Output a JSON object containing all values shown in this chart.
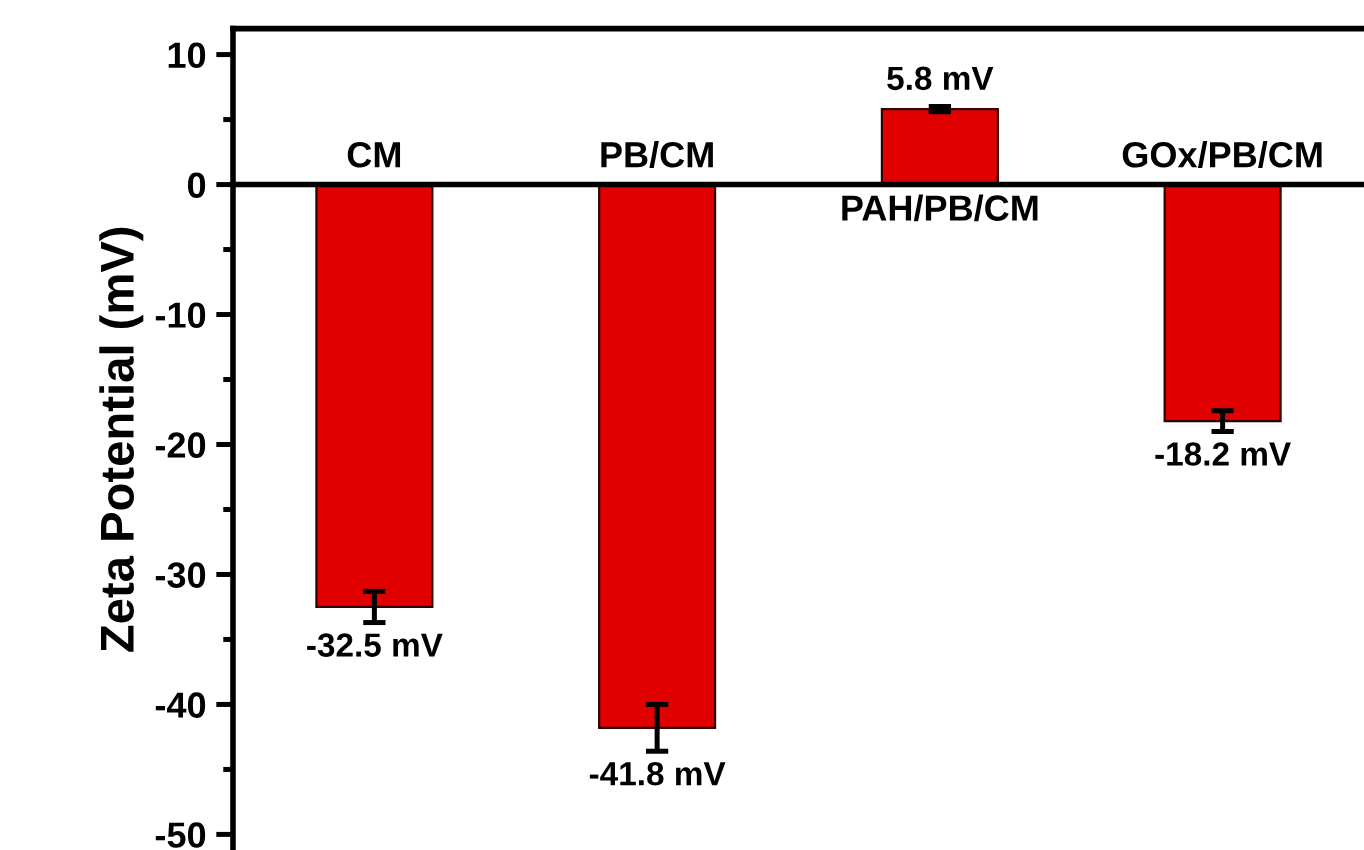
{
  "chart_data": {
    "type": "bar",
    "ylabel": "Zeta Potential (mV)",
    "categories": [
      "CM",
      "PB/CM",
      "PAH/PB/CM",
      "GOx/PB/CM"
    ],
    "values": [
      -32.5,
      -41.8,
      5.8,
      -18.2
    ],
    "errors": [
      1.2,
      1.8,
      0.2,
      0.8
    ],
    "value_labels": [
      "-32.5 mV",
      "-41.8 mV",
      "5.8 mV",
      "-18.2 mV"
    ],
    "color": "#e00000",
    "ylim": [
      -51.2,
      12
    ],
    "yticks": [
      -50,
      {
        "value": -45,
        "label": null
      },
      -40,
      {
        "value": -35,
        "label": null
      },
      -30,
      {
        "value": -25,
        "label": null
      },
      -20,
      {
        "value": -15,
        "label": null
      },
      -10,
      {
        "value": -5,
        "label": null
      },
      0,
      {
        "value": 5,
        "label": null
      },
      10
    ],
    "grid": false
  }
}
